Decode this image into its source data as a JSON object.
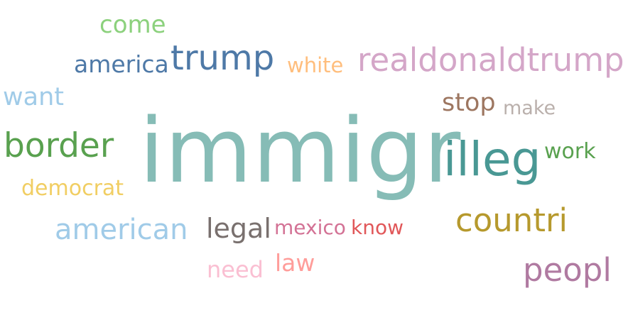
{
  "words": {
    "immigr": {
      "text": "immigr",
      "color": "#86bcb6"
    },
    "illeg": {
      "text": "illeg",
      "color": "#499894"
    },
    "realdonaldtrump": {
      "text": "realdonaldtrump",
      "color": "#d4a6c8"
    },
    "trump": {
      "text": "trump",
      "color": "#4e79a7"
    },
    "border": {
      "text": "border",
      "color": "#59a14f"
    },
    "countri": {
      "text": "countri",
      "color": "#b6992d"
    },
    "peopl": {
      "text": "peopl",
      "color": "#b07aa1"
    },
    "american": {
      "text": "american",
      "color": "#a0cbe8"
    },
    "legal": {
      "text": "legal",
      "color": "#79706e"
    },
    "america": {
      "text": "america",
      "color": "#4e79a7"
    },
    "want": {
      "text": "want",
      "color": "#a0cbe8"
    },
    "come": {
      "text": "come",
      "color": "#8cd17d"
    },
    "stop": {
      "text": "stop",
      "color": "#9d7660"
    },
    "white": {
      "text": "white",
      "color": "#ffbe7d"
    },
    "work": {
      "text": "work",
      "color": "#59a14f"
    },
    "democrat": {
      "text": "democrat",
      "color": "#f1ce63"
    },
    "mexico": {
      "text": "mexico",
      "color": "#d37295"
    },
    "know": {
      "text": "know",
      "color": "#e15759"
    },
    "law": {
      "text": "law",
      "color": "#ff9d9a"
    },
    "need": {
      "text": "need",
      "color": "#fabfd2"
    },
    "make": {
      "text": "make",
      "color": "#bab0ac"
    }
  }
}
